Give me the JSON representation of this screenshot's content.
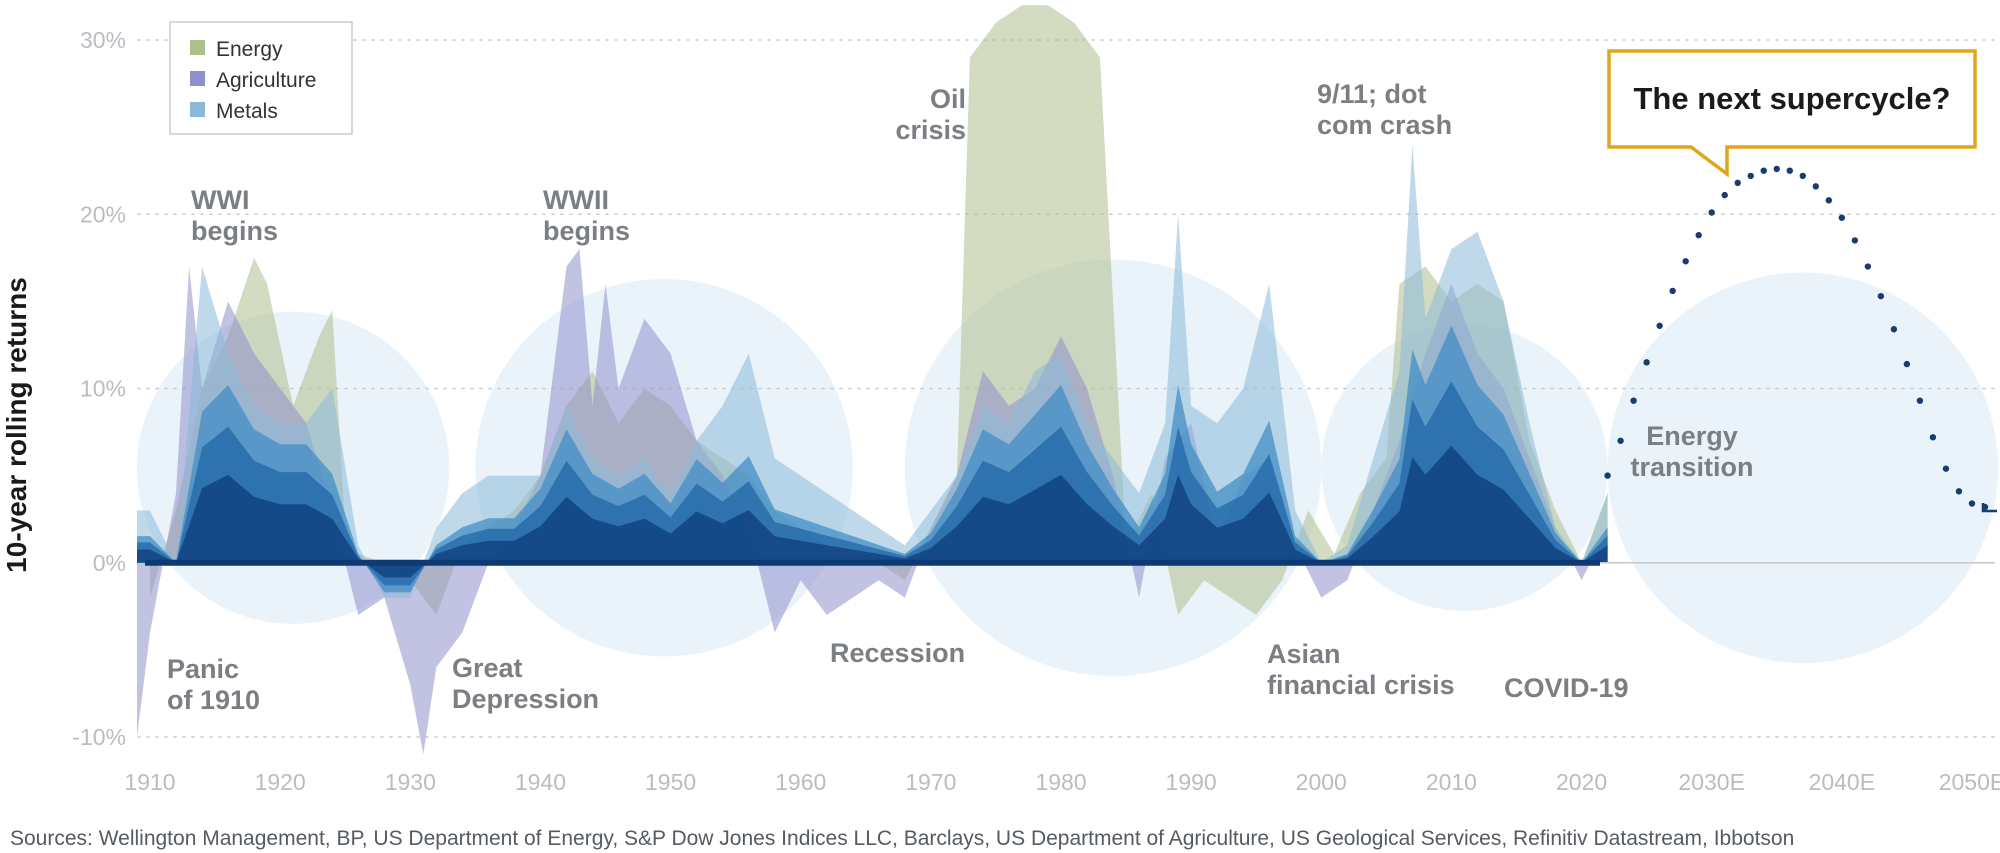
{
  "chart_data": {
    "type": "area",
    "title": "",
    "xlabel": "",
    "ylabel": "10-year rolling returns",
    "ylim": [
      -10,
      30
    ],
    "xlim": [
      1909,
      2052
    ],
    "x_ticks": [
      {
        "value": 1910,
        "label": "1910"
      },
      {
        "value": 1920,
        "label": "1920"
      },
      {
        "value": 1930,
        "label": "1930"
      },
      {
        "value": 1940,
        "label": "1940"
      },
      {
        "value": 1950,
        "label": "1950"
      },
      {
        "value": 1960,
        "label": "1960"
      },
      {
        "value": 1970,
        "label": "1970"
      },
      {
        "value": 1980,
        "label": "1980"
      },
      {
        "value": 1990,
        "label": "1990"
      },
      {
        "value": 2000,
        "label": "2000"
      },
      {
        "value": 2010,
        "label": "2010"
      },
      {
        "value": 2020,
        "label": "2020"
      },
      {
        "value": 2030,
        "label": "2030E"
      },
      {
        "value": 2040,
        "label": "2040E"
      },
      {
        "value": 2050,
        "label": "2050E"
      }
    ],
    "y_ticks": [
      {
        "value": 30,
        "label": "30%"
      },
      {
        "value": 20,
        "label": "20%"
      },
      {
        "value": 10,
        "label": "10%"
      },
      {
        "value": 0,
        "label": "0%"
      },
      {
        "value": -10,
        "label": "-10%"
      }
    ],
    "grid": "horizontal dotted",
    "legend_position": "top-left",
    "series": [
      {
        "name": "Energy",
        "color": "#aebe8c",
        "x": [
          1910,
          1912,
          1914,
          1916,
          1918,
          1919,
          1921,
          1923,
          1924,
          1925,
          1926,
          1928,
          1930,
          1932,
          1934,
          1936,
          1938,
          1940,
          1942,
          1944,
          1946,
          1948,
          1950,
          1952,
          1954,
          1956,
          1958,
          1960,
          1962,
          1964,
          1966,
          1968,
          1970,
          1972,
          1973,
          1975,
          1977,
          1979,
          1981,
          1983,
          1985,
          1987,
          1989,
          1991,
          1993,
          1995,
          1997,
          1999,
          2001,
          2003,
          2005,
          2006,
          2008,
          2010,
          2012,
          2014,
          2016,
          2018,
          2020,
          2022
        ],
        "y": [
          -2,
          3,
          10,
          13,
          17.5,
          16,
          9,
          13,
          14.5,
          2,
          0.5,
          0,
          -1,
          -3,
          1,
          2,
          3,
          5,
          9,
          11,
          8,
          10,
          9,
          7,
          6,
          5,
          3,
          2,
          1,
          0.5,
          0,
          -1,
          2,
          5,
          29,
          31,
          32,
          32,
          31,
          29,
          1,
          4,
          -3,
          -1,
          -2,
          -3,
          -1,
          3,
          0.5,
          4,
          6,
          16,
          17,
          15,
          16,
          15,
          7,
          3,
          0,
          4
        ]
      },
      {
        "name": "Agriculture",
        "color": "#8f8fcc",
        "x": [
          1909,
          1910,
          1912,
          1913,
          1914,
          1916,
          1918,
          1920,
          1922,
          1924,
          1926,
          1928,
          1930,
          1931,
          1932,
          1934,
          1936,
          1938,
          1940,
          1942,
          1943,
          1944,
          1945,
          1946,
          1948,
          1950,
          1952,
          1954,
          1956,
          1958,
          1960,
          1962,
          1964,
          1966,
          1968,
          1970,
          1972,
          1974,
          1976,
          1978,
          1980,
          1982,
          1984,
          1986,
          1988,
          1990,
          1992,
          1994,
          1996,
          1998,
          2000,
          2002,
          2004,
          2006,
          2008,
          2010,
          2012,
          2014,
          2016,
          2018,
          2020,
          2022
        ],
        "y": [
          -10,
          -4,
          4,
          17,
          10,
          15,
          12,
          10,
          8,
          3,
          -3,
          -2,
          -7,
          -11,
          -6,
          -4,
          0,
          2,
          5,
          17,
          18,
          9,
          16,
          10,
          14,
          12,
          7,
          5,
          2,
          -4,
          -1,
          -3,
          -2,
          -1,
          -2,
          2,
          5,
          11,
          9,
          10,
          13,
          10,
          5,
          -2,
          6,
          8,
          1,
          5,
          6,
          1,
          -2,
          -1,
          3,
          7,
          12,
          16,
          12,
          10,
          6,
          2,
          -1,
          2
        ]
      },
      {
        "name": "Metals",
        "color": "#8bbad8",
        "x": [
          1909,
          1910,
          1912,
          1914,
          1916,
          1918,
          1920,
          1922,
          1924,
          1926,
          1928,
          1930,
          1932,
          1934,
          1936,
          1938,
          1940,
          1942,
          1944,
          1946,
          1948,
          1950,
          1952,
          1954,
          1956,
          1958,
          1960,
          1962,
          1964,
          1966,
          1968,
          1970,
          1972,
          1974,
          1976,
          1978,
          1980,
          1982,
          1984,
          1986,
          1988,
          1989,
          1990,
          1992,
          1994,
          1996,
          1998,
          2000,
          2002,
          2004,
          2006,
          2007,
          2008,
          2010,
          2012,
          2014,
          2016,
          2018,
          2020,
          2022
        ],
        "y": [
          3,
          3,
          0,
          17,
          12,
          9,
          8,
          8,
          10,
          1,
          -2,
          -2,
          2,
          4,
          5,
          5,
          5,
          9,
          6,
          5,
          6,
          4,
          7,
          9,
          12,
          6,
          5,
          4,
          3,
          2,
          1,
          3,
          5,
          9,
          8,
          11,
          12,
          8,
          6,
          4,
          8,
          20,
          9,
          8,
          10,
          16,
          3,
          0,
          1,
          6,
          11,
          24,
          14,
          18,
          19,
          15,
          8,
          2,
          0,
          4
        ]
      }
    ],
    "bubbles": [
      {
        "from": 1909,
        "to": 1933
      },
      {
        "from": 1935,
        "to": 1964
      },
      {
        "from": 1968,
        "to": 2000
      },
      {
        "from": 2000,
        "to": 2022
      },
      {
        "from": 2022,
        "to": 2052
      }
    ],
    "projection": {
      "x": [
        2022,
        2023,
        2024,
        2025,
        2026,
        2027,
        2028,
        2029,
        2030,
        2031,
        2032,
        2033,
        2034,
        2035,
        2036,
        2037,
        2038,
        2039,
        2040,
        2041,
        2042,
        2043,
        2044,
        2045,
        2046,
        2047,
        2048,
        2049,
        2050,
        2051
      ],
      "y": [
        5,
        7,
        9.3,
        11.5,
        13.6,
        15.6,
        17.3,
        18.8,
        20.1,
        21.1,
        21.8,
        22.2,
        22.5,
        22.6,
        22.5,
        22.2,
        21.6,
        20.8,
        19.8,
        18.5,
        17,
        15.3,
        13.4,
        11.4,
        9.3,
        7.2,
        5.4,
        4.1,
        3.4,
        3.2
      ]
    },
    "annotations": [
      {
        "id": "wwi",
        "lines": [
          "WWI",
          "begins"
        ]
      },
      {
        "id": "panic",
        "lines": [
          "Panic",
          "of 1910"
        ]
      },
      {
        "id": "wwii",
        "lines": [
          "WWII",
          "begins"
        ]
      },
      {
        "id": "great-depression",
        "lines": [
          "Great",
          "Depression"
        ]
      },
      {
        "id": "recession",
        "lines": [
          "Recession"
        ]
      },
      {
        "id": "oil-crisis",
        "lines": [
          "Oil",
          "crisis"
        ]
      },
      {
        "id": "dotcom",
        "lines": [
          "9/11; dot",
          "com crash"
        ]
      },
      {
        "id": "asian",
        "lines": [
          "Asian",
          "financial crisis"
        ]
      },
      {
        "id": "covid",
        "lines": [
          "COVID-19"
        ]
      },
      {
        "id": "energy-transition",
        "lines": [
          "Energy",
          "transition"
        ]
      }
    ],
    "callout": "The next supercycle?"
  },
  "source": "Sources: Wellington Management, BP, US Department of Energy, S&P Dow Jones Indices LLC, Barclays, US Department of Agriculture, US Geological Services, Refinitiv Datastream, Ibbotson"
}
